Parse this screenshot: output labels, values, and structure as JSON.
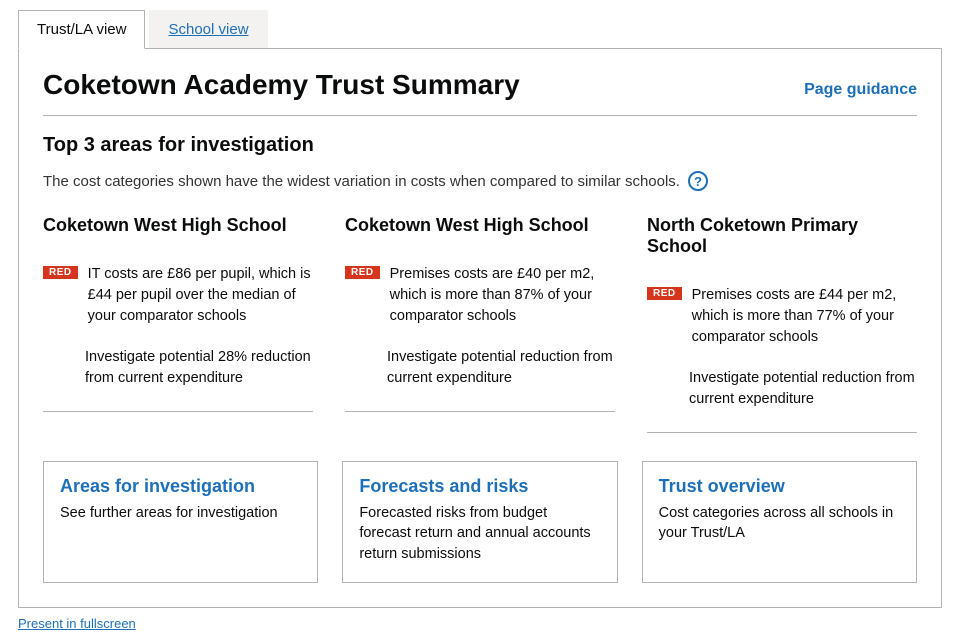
{
  "tabs": {
    "trust_la": "Trust/LA view",
    "school": "School view"
  },
  "title": "Coketown Academy Trust Summary",
  "page_guidance_label": "Page guidance",
  "section": {
    "heading": "Top 3 areas for investigation",
    "intro": "The cost categories shown have the widest variation in costs when compared to similar schools."
  },
  "help_glyph": "?",
  "columns": [
    {
      "school": "Coketown West High School",
      "badge": "RED",
      "finding": "IT costs are £86 per pupil, which is £44 per pupil over the median of your comparator schools",
      "action": "Investigate potential 28% reduction from current expenditure"
    },
    {
      "school": "Coketown West High School",
      "badge": "RED",
      "finding": "Premises costs are £40 per m2, which is more than 87% of your comparator schools",
      "action": "Investigate potential reduction from current expenditure"
    },
    {
      "school": "North Coketown Primary School",
      "badge": "RED",
      "finding": "Premises costs are £44 per m2, which is more than 77% of your comparator schools",
      "action": "Investigate potential reduction from current expenditure"
    }
  ],
  "cards": [
    {
      "title": "Areas for investigation",
      "desc": "See further areas for investigation"
    },
    {
      "title": "Forecasts and risks",
      "desc": "Forecasted risks from budget forecast return and annual accounts return submissions"
    },
    {
      "title": "Trust overview",
      "desc": "Cost categories across all schools in your Trust/LA"
    }
  ],
  "fullscreen_label": "Present in fullscreen",
  "colors": {
    "link": "#1d70b8",
    "badge_bg": "#d4351c",
    "border": "#b1b4b6",
    "tab_inactive_bg": "#f3f2f1"
  }
}
